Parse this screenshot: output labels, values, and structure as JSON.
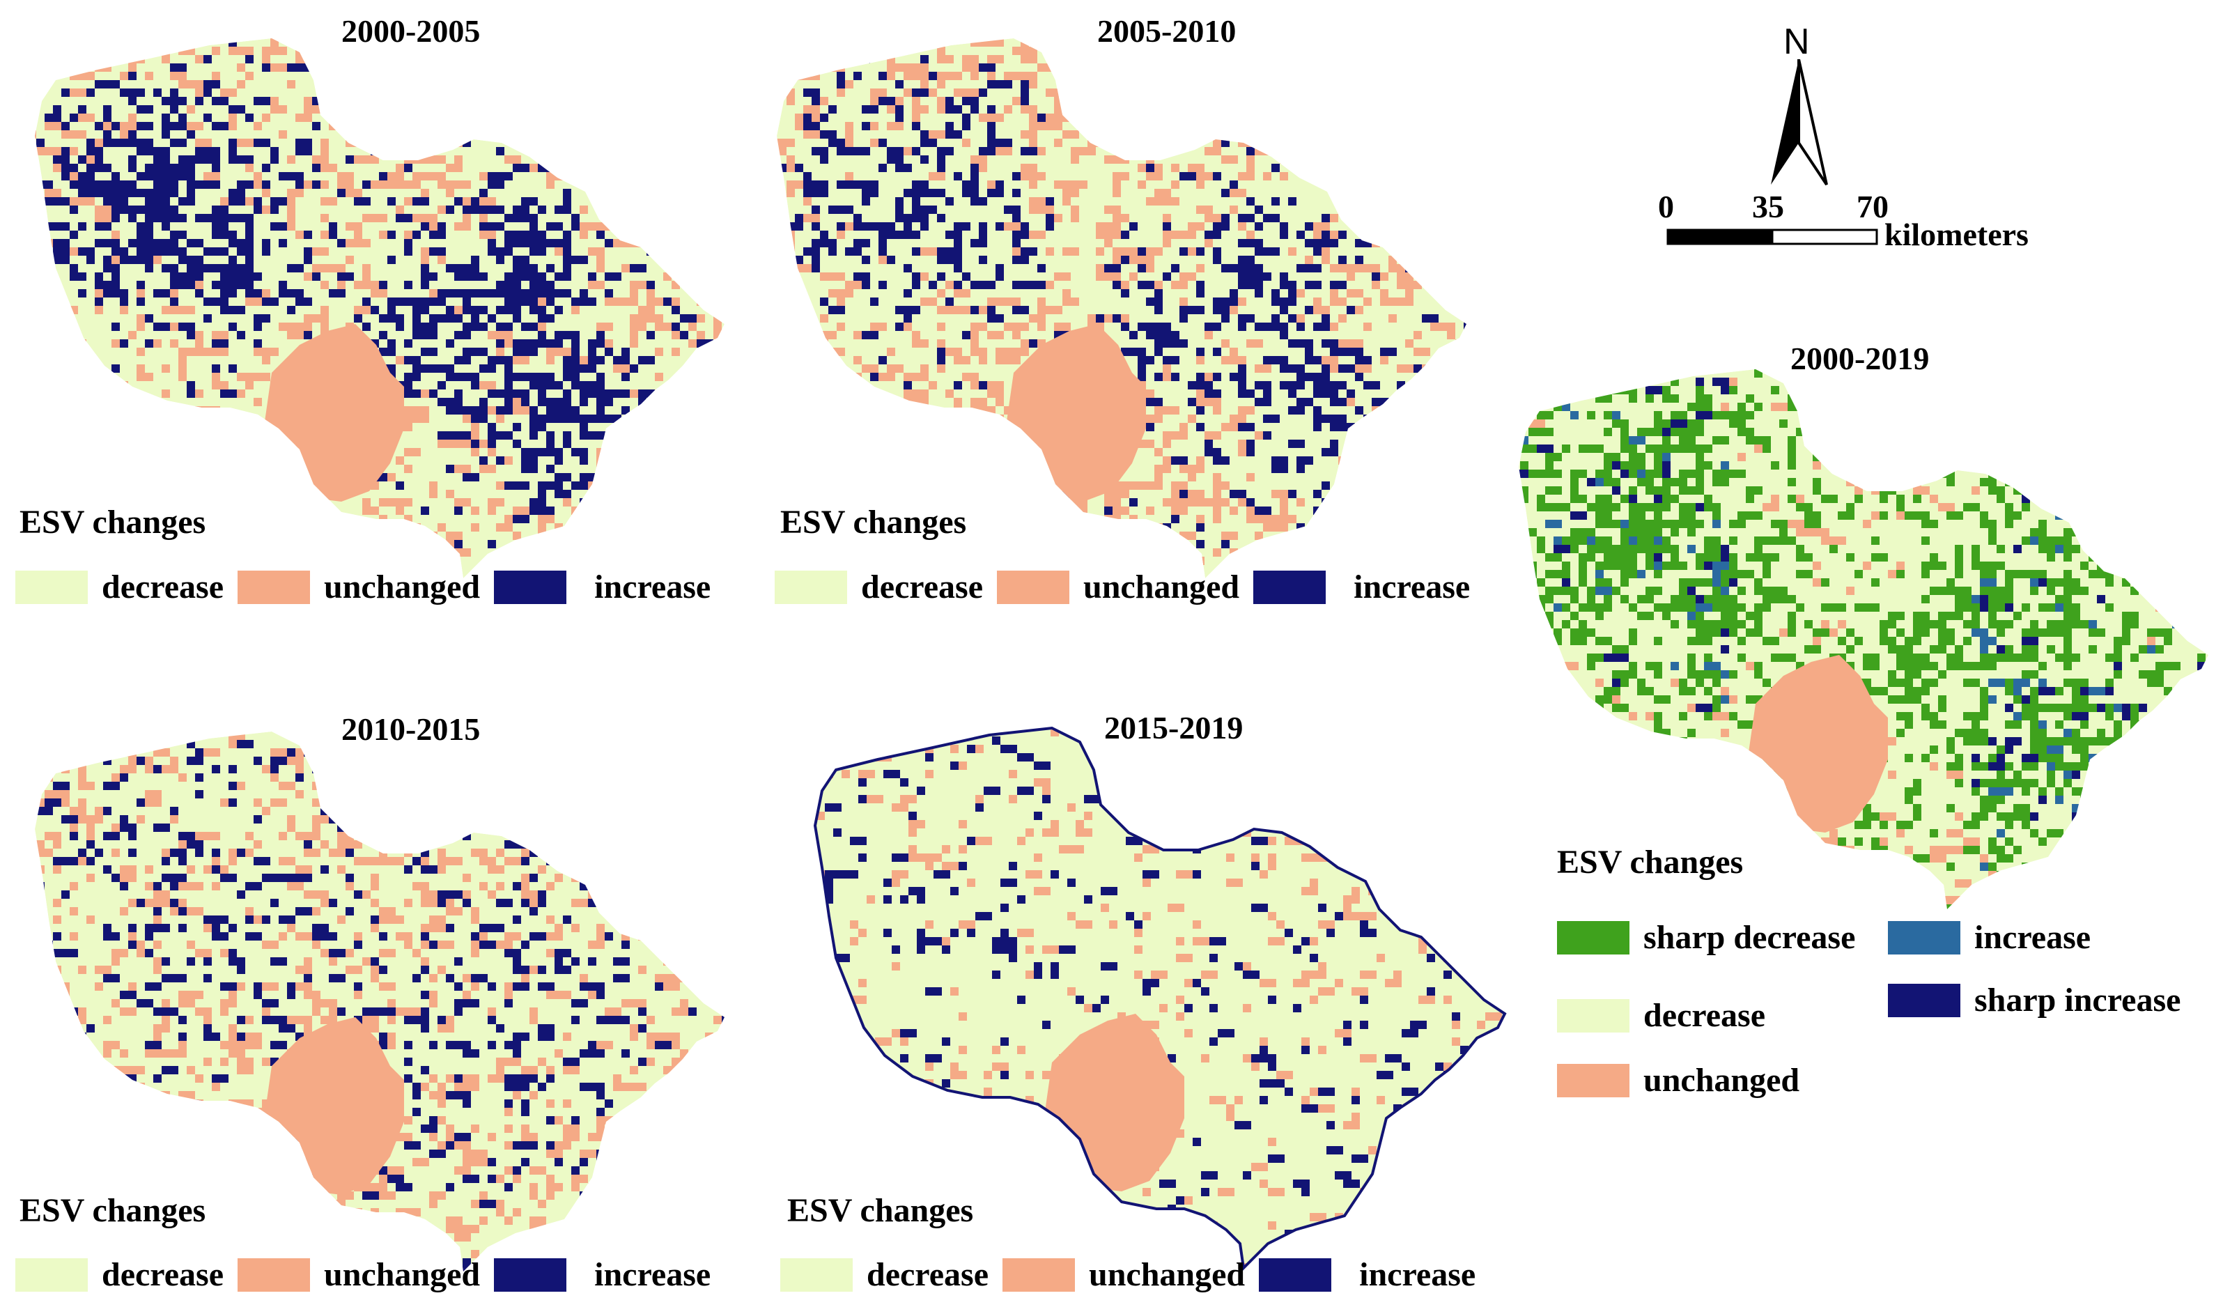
{
  "colors": {
    "decrease": "#ecfac6",
    "unchanged": "#f5aa86",
    "increase": "#121474",
    "sharp_decrease": "#3fa21d",
    "increase_mid": "#2a6aa0",
    "sharp_increase": "#121474"
  },
  "panels": [
    {
      "title": "2000-2005",
      "legend_title": "ESV changes",
      "legend": [
        {
          "label": "decrease",
          "color": "#ecfac6"
        },
        {
          "label": "unchanged",
          "color": "#f5aa86"
        },
        {
          "label": "increase",
          "color": "#121474"
        }
      ]
    },
    {
      "title": "2005-2010",
      "legend_title": "ESV changes",
      "legend": [
        {
          "label": "decrease",
          "color": "#ecfac6"
        },
        {
          "label": "unchanged",
          "color": "#f5aa86"
        },
        {
          "label": "increase",
          "color": "#121474"
        }
      ]
    },
    {
      "title": "2010-2015",
      "legend_title": "ESV changes",
      "legend": [
        {
          "label": "decrease",
          "color": "#ecfac6"
        },
        {
          "label": "unchanged",
          "color": "#f5aa86"
        },
        {
          "label": "increase",
          "color": "#121474"
        }
      ]
    },
    {
      "title": "2015-2019",
      "legend_title": "ESV changes",
      "legend": [
        {
          "label": "decrease",
          "color": "#ecfac6"
        },
        {
          "label": "unchanged",
          "color": "#f5aa86"
        },
        {
          "label": "increase",
          "color": "#121474"
        }
      ]
    },
    {
      "title": "2000-2019",
      "legend_title": "ESV changes",
      "legend": [
        {
          "label": "sharp decrease",
          "color": "#3fa21d"
        },
        {
          "label": "increase",
          "color": "#2a6aa0"
        },
        {
          "label": "decrease",
          "color": "#ecfac6"
        },
        {
          "label": "sharp increase",
          "color": "#121474"
        },
        {
          "label": "unchanged",
          "color": "#f5aa86"
        }
      ]
    }
  ],
  "north_arrow": {
    "label": "N",
    "icon": "north-arrow-icon"
  },
  "scale_bar": {
    "ticks": [
      "0",
      "35",
      "70"
    ],
    "unit": "kilometers"
  }
}
